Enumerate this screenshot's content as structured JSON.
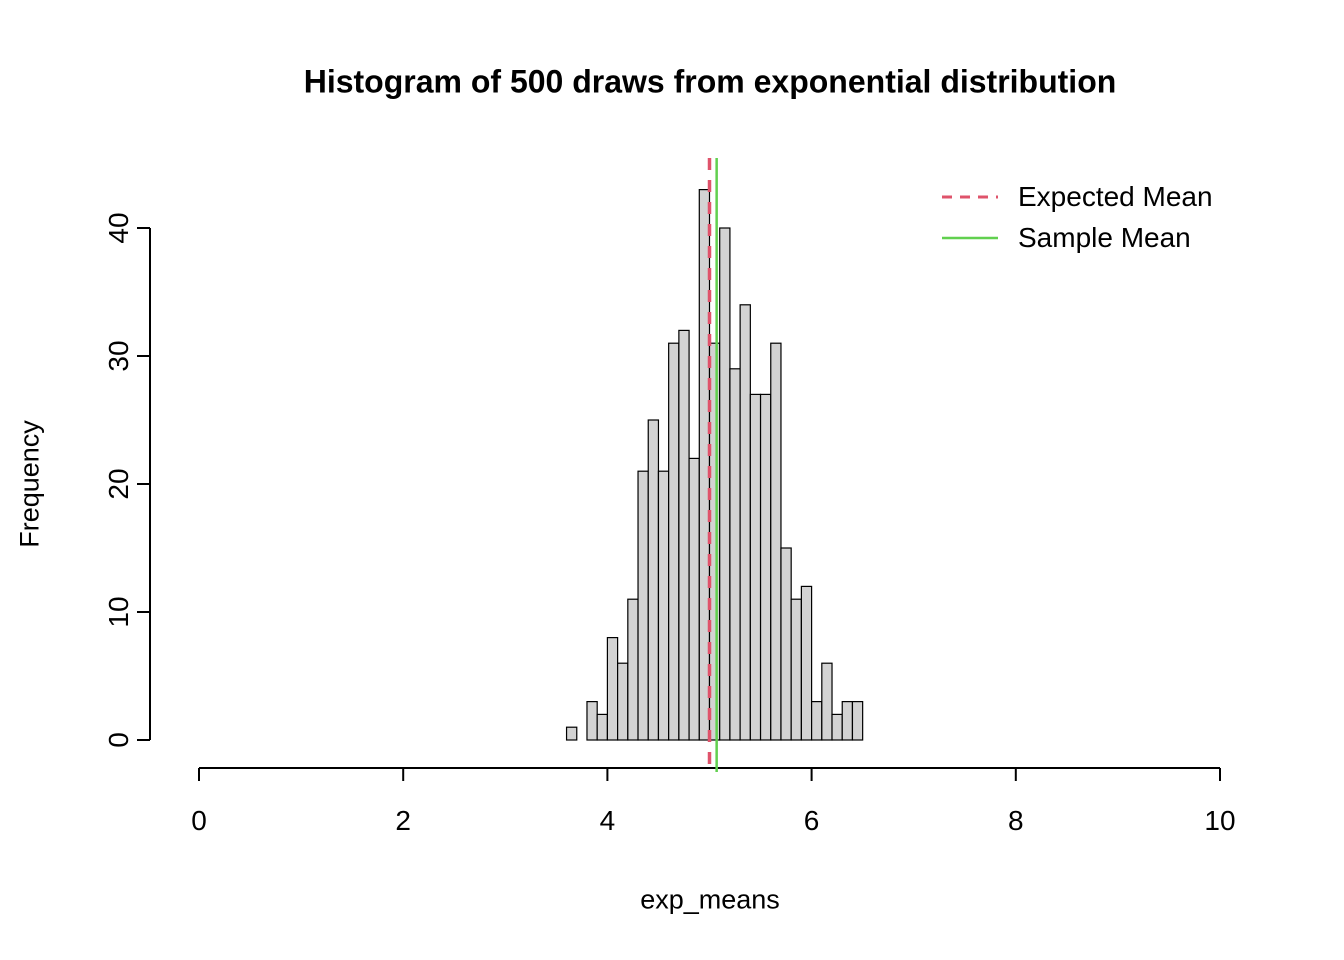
{
  "chart_data": {
    "type": "bar",
    "subtype": "histogram",
    "title": "Histogram of 500 draws from exponential distribution",
    "xlabel": "exp_means",
    "ylabel": "Frequency",
    "xlim": [
      0,
      10
    ],
    "ylim": [
      0,
      40
    ],
    "x_ticks": [
      0,
      2,
      4,
      6,
      8,
      10
    ],
    "y_ticks": [
      0,
      10,
      20,
      30,
      40
    ],
    "bin_start": 3.6,
    "bin_width": 0.1,
    "counts": [
      1,
      0,
      3,
      2,
      8,
      6,
      11,
      21,
      25,
      21,
      31,
      32,
      22,
      43,
      31,
      40,
      29,
      34,
      27,
      27,
      31,
      15,
      11,
      12,
      3,
      6,
      2,
      3,
      3
    ],
    "bar_fill": "#d3d3d3",
    "bar_stroke": "#000000",
    "expected_mean": {
      "label": "Expected Mean",
      "value": 5.0,
      "color": "#DF536B",
      "style": "dashed"
    },
    "sample_mean": {
      "label": "Sample Mean",
      "value": 5.07,
      "color": "#61D04F",
      "style": "solid"
    },
    "legend_position": "topright",
    "grid": false
  }
}
